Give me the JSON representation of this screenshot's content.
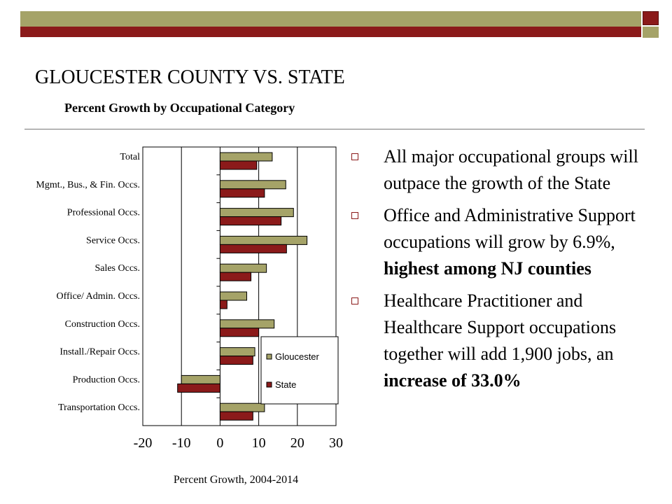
{
  "header": {
    "title": "GLOUCESTER COUNTY VS. STATE",
    "subtitle": "Percent Growth by Occupational Category"
  },
  "colors": {
    "gloucester": "#a5a368",
    "state": "#8b1a1a"
  },
  "chart_data": {
    "type": "bar",
    "orientation": "horizontal",
    "categories": [
      "Total",
      "Mgmt., Bus., & Fin. Occs.",
      "Professional Occs.",
      "Service Occs.",
      "Sales Occs.",
      "Office/ Admin. Occs.",
      "Construction Occs.",
      "Install./Repair Occs.",
      "Production Occs.",
      "Transportation Occs."
    ],
    "series": [
      {
        "name": "Gloucester",
        "values": [
          13.5,
          17,
          19,
          22.5,
          12,
          6.9,
          14,
          9,
          -10,
          11.5
        ]
      },
      {
        "name": "State",
        "values": [
          9.5,
          11.5,
          15.8,
          17.2,
          8,
          1.8,
          10,
          8.5,
          -11,
          8.5
        ]
      }
    ],
    "xlim": [
      -20,
      30
    ],
    "xticks": [
      "-20",
      "-10",
      "0",
      "10",
      "20",
      "30"
    ],
    "xlabel": "Percent Growth, 2004-2014",
    "grid": true,
    "legend": "right"
  },
  "bullets": [
    {
      "parts": [
        {
          "text": "All major occupational groups will outpace the growth of the State",
          "bold": false
        }
      ]
    },
    {
      "parts": [
        {
          "text": "Office and Administrative Support occupations will grow by 6.9%, ",
          "bold": false
        },
        {
          "text": "highest among NJ counties",
          "bold": true
        }
      ]
    },
    {
      "parts": [
        {
          "text": "Healthcare Practitioner and Healthcare Support occupations together will add 1,900 jobs, an ",
          "bold": false
        },
        {
          "text": "increase of 33.0%",
          "bold": true
        }
      ]
    }
  ]
}
